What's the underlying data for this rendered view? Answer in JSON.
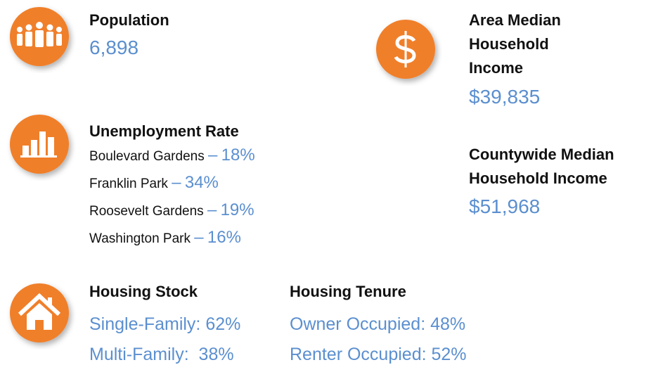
{
  "population": {
    "label": "Population",
    "value": "6,898"
  },
  "area_income": {
    "label": "Area Median Household Income",
    "value": "$39,835"
  },
  "unemployment": {
    "label": "Unemployment Rate",
    "separator": "–",
    "rows": [
      {
        "name": "Boulevard Gardens",
        "value": "18%"
      },
      {
        "name": "Franklin Park",
        "value": "34%"
      },
      {
        "name": "Roosevelt Gardens",
        "value": "19%"
      },
      {
        "name": "Washington Park",
        "value": "16%"
      }
    ]
  },
  "county_income": {
    "label": "Countywide Median Household Income",
    "value": "$51,968"
  },
  "housing_stock": {
    "label": "Housing Stock",
    "rows": [
      "Single-Family: 62%",
      "Multi-Family:  38%"
    ]
  },
  "housing_tenure": {
    "label": "Housing Tenure",
    "rows": [
      "Owner Occupied: 48%",
      "Renter Occupied: 52%"
    ]
  }
}
